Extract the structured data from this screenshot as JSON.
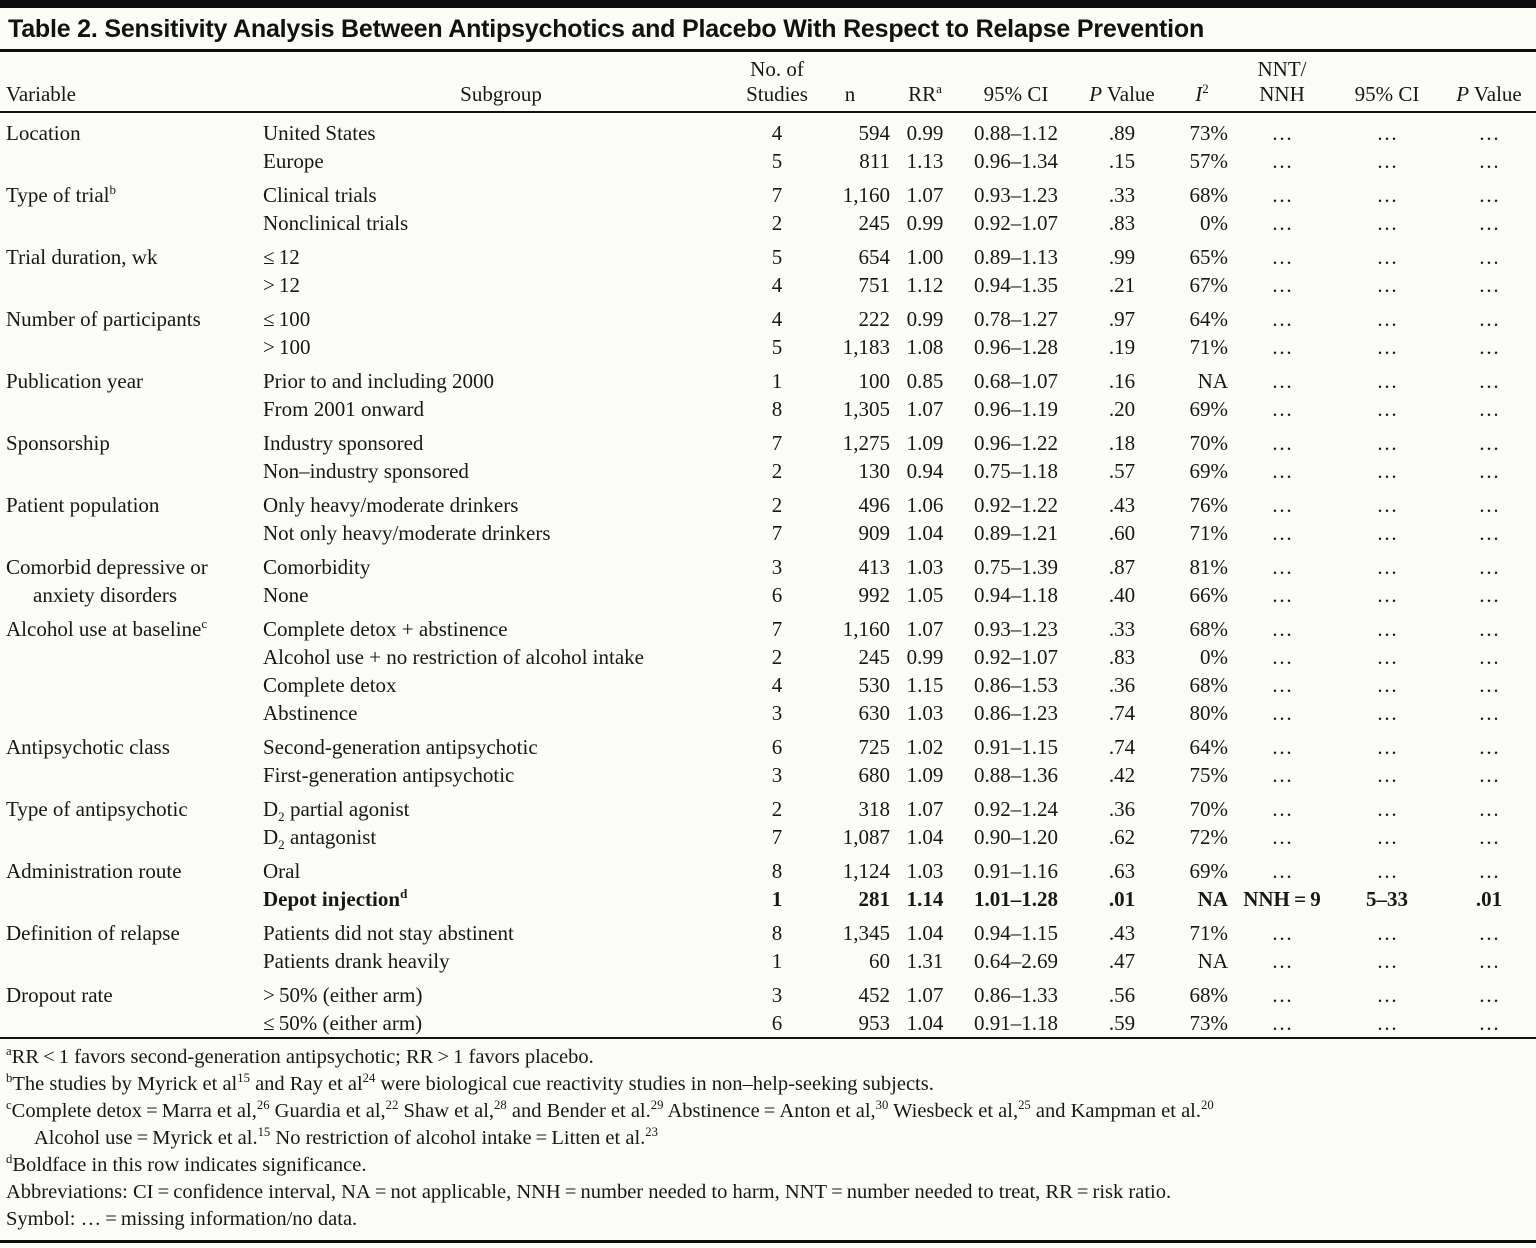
{
  "title": "Table 2. Sensitivity Analysis Between Antipsychotics and Placebo With Respect to Relapse Prevention",
  "header": {
    "variable": "Variable",
    "subgroup": "Subgroup",
    "studies_line1": "No. of",
    "studies_line2": "Studies",
    "n": "n",
    "rr": "RR",
    "rr_sup": "a",
    "ci": "95% CI",
    "p_italic": "P",
    "p_rest": " Value",
    "i2_base": "I",
    "i2_sup": "2",
    "nnt_line1": "NNT/",
    "nnt_line2": "NNH",
    "ci2": "95% CI",
    "p2_italic": "P",
    "p2_rest": " Value"
  },
  "groups": [
    {
      "variable": {
        "lines": [
          "Location"
        ]
      },
      "rows": [
        {
          "subgroup": "United States",
          "cells": [
            "4",
            "594",
            "0.99",
            "0.88–1.12",
            ".89",
            "73%",
            "…",
            "…",
            "…"
          ]
        },
        {
          "subgroup": "Europe",
          "cells": [
            "5",
            "811",
            "1.13",
            "0.96–1.34",
            ".15",
            "57%",
            "…",
            "…",
            "…"
          ]
        }
      ]
    },
    {
      "variable": {
        "lines": [
          [
            {
              "t": "Type of trial"
            },
            {
              "t": "b",
              "sup": true
            }
          ]
        ]
      },
      "rows": [
        {
          "subgroup": "Clinical trials",
          "cells": [
            "7",
            "1,160",
            "1.07",
            "0.93–1.23",
            ".33",
            "68%",
            "…",
            "…",
            "…"
          ]
        },
        {
          "subgroup": "Nonclinical trials",
          "cells": [
            "2",
            "245",
            "0.99",
            "0.92–1.07",
            ".83",
            "0%",
            "…",
            "…",
            "…"
          ]
        }
      ]
    },
    {
      "variable": {
        "lines": [
          "Trial duration, wk"
        ]
      },
      "rows": [
        {
          "subgroup": "≤ 12",
          "cells": [
            "5",
            "654",
            "1.00",
            "0.89–1.13",
            ".99",
            "65%",
            "…",
            "…",
            "…"
          ]
        },
        {
          "subgroup": "> 12",
          "cells": [
            "4",
            "751",
            "1.12",
            "0.94–1.35",
            ".21",
            "67%",
            "…",
            "…",
            "…"
          ]
        }
      ]
    },
    {
      "variable": {
        "lines": [
          "Number of participants"
        ]
      },
      "rows": [
        {
          "subgroup": "≤ 100",
          "cells": [
            "4",
            "222",
            "0.99",
            "0.78–1.27",
            ".97",
            "64%",
            "…",
            "…",
            "…"
          ]
        },
        {
          "subgroup": "> 100",
          "cells": [
            "5",
            "1,183",
            "1.08",
            "0.96–1.28",
            ".19",
            "71%",
            "…",
            "…",
            "…"
          ]
        }
      ]
    },
    {
      "variable": {
        "lines": [
          "Publication year"
        ]
      },
      "rows": [
        {
          "subgroup": "Prior to and including 2000",
          "cells": [
            "1",
            "100",
            "0.85",
            "0.68–1.07",
            ".16",
            "NA",
            "…",
            "…",
            "…"
          ]
        },
        {
          "subgroup": "From 2001 onward",
          "cells": [
            "8",
            "1,305",
            "1.07",
            "0.96–1.19",
            ".20",
            "69%",
            "…",
            "…",
            "…"
          ]
        }
      ]
    },
    {
      "variable": {
        "lines": [
          "Sponsorship"
        ]
      },
      "rows": [
        {
          "subgroup": "Industry sponsored",
          "cells": [
            "7",
            "1,275",
            "1.09",
            "0.96–1.22",
            ".18",
            "70%",
            "…",
            "…",
            "…"
          ]
        },
        {
          "subgroup": "Non–industry sponsored",
          "cells": [
            "2",
            "130",
            "0.94",
            "0.75–1.18",
            ".57",
            "69%",
            "…",
            "…",
            "…"
          ]
        }
      ]
    },
    {
      "variable": {
        "lines": [
          "Patient population"
        ]
      },
      "rows": [
        {
          "subgroup": "Only heavy/moderate drinkers",
          "cells": [
            "2",
            "496",
            "1.06",
            "0.92–1.22",
            ".43",
            "76%",
            "…",
            "…",
            "…"
          ]
        },
        {
          "subgroup": "Not only heavy/moderate drinkers",
          "cells": [
            "7",
            "909",
            "1.04",
            "0.89–1.21",
            ".60",
            "71%",
            "…",
            "…",
            "…"
          ]
        }
      ]
    },
    {
      "variable": {
        "lines": [
          "Comorbid depressive or",
          "anxiety disorders"
        ]
      },
      "rows": [
        {
          "subgroup": "Comorbidity",
          "cells": [
            "3",
            "413",
            "1.03",
            "0.75–1.39",
            ".87",
            "81%",
            "…",
            "…",
            "…"
          ]
        },
        {
          "subgroup": "None",
          "cells": [
            "6",
            "992",
            "1.05",
            "0.94–1.18",
            ".40",
            "66%",
            "…",
            "…",
            "…"
          ]
        }
      ]
    },
    {
      "variable": {
        "lines": [
          [
            {
              "t": "Alcohol use at baseline"
            },
            {
              "t": "c",
              "sup": true
            }
          ]
        ]
      },
      "rows": [
        {
          "subgroup": "Complete detox + abstinence",
          "cells": [
            "7",
            "1,160",
            "1.07",
            "0.93–1.23",
            ".33",
            "68%",
            "…",
            "…",
            "…"
          ]
        },
        {
          "subgroup": "Alcohol use + no restriction of alcohol intake",
          "cells": [
            "2",
            "245",
            "0.99",
            "0.92–1.07",
            ".83",
            "0%",
            "…",
            "…",
            "…"
          ]
        },
        {
          "subgroup": "Complete detox",
          "cells": [
            "4",
            "530",
            "1.15",
            "0.86–1.53",
            ".36",
            "68%",
            "…",
            "…",
            "…"
          ]
        },
        {
          "subgroup": "Abstinence",
          "cells": [
            "3",
            "630",
            "1.03",
            "0.86–1.23",
            ".74",
            "80%",
            "…",
            "…",
            "…"
          ]
        }
      ]
    },
    {
      "variable": {
        "lines": [
          "Antipsychotic class"
        ]
      },
      "rows": [
        {
          "subgroup": "Second-generation antipsychotic",
          "cells": [
            "6",
            "725",
            "1.02",
            "0.91–1.15",
            ".74",
            "64%",
            "…",
            "…",
            "…"
          ]
        },
        {
          "subgroup": "First-generation antipsychotic",
          "cells": [
            "3",
            "680",
            "1.09",
            "0.88–1.36",
            ".42",
            "75%",
            "…",
            "…",
            "…"
          ]
        }
      ]
    },
    {
      "variable": {
        "lines": [
          "Type of antipsychotic"
        ]
      },
      "rows": [
        {
          "subgroup": [
            {
              "t": "D"
            },
            {
              "t": "2",
              "sub": true
            },
            {
              "t": " partial agonist"
            }
          ],
          "cells": [
            "2",
            "318",
            "1.07",
            "0.92–1.24",
            ".36",
            "70%",
            "…",
            "…",
            "…"
          ]
        },
        {
          "subgroup": [
            {
              "t": "D"
            },
            {
              "t": "2",
              "sub": true
            },
            {
              "t": " antagonist"
            }
          ],
          "cells": [
            "7",
            "1,087",
            "1.04",
            "0.90–1.20",
            ".62",
            "72%",
            "…",
            "…",
            "…"
          ]
        }
      ]
    },
    {
      "variable": {
        "lines": [
          "Administration route"
        ]
      },
      "rows": [
        {
          "subgroup": "Oral",
          "cells": [
            "8",
            "1,124",
            "1.03",
            "0.91–1.16",
            ".63",
            "69%",
            "…",
            "…",
            "…"
          ]
        },
        {
          "subgroup": [
            {
              "t": "Depot injection"
            },
            {
              "t": "d",
              "sup": true
            }
          ],
          "bold": true,
          "cells": [
            "1",
            "281",
            "1.14",
            "1.01–1.28",
            ".01",
            "NA",
            "NNH = 9",
            "5–33",
            ".01"
          ]
        }
      ]
    },
    {
      "variable": {
        "lines": [
          "Definition of relapse"
        ]
      },
      "rows": [
        {
          "subgroup": "Patients did not stay abstinent",
          "cells": [
            "8",
            "1,345",
            "1.04",
            "0.94–1.15",
            ".43",
            "71%",
            "…",
            "…",
            "…"
          ]
        },
        {
          "subgroup": "Patients drank heavily",
          "cells": [
            "1",
            "60",
            "1.31",
            "0.64–2.69",
            ".47",
            "NA",
            "…",
            "…",
            "…"
          ]
        }
      ]
    },
    {
      "variable": {
        "lines": [
          "Dropout rate"
        ]
      },
      "rows": [
        {
          "subgroup": "> 50% (either arm)",
          "cells": [
            "3",
            "452",
            "1.07",
            "0.86–1.33",
            ".56",
            "68%",
            "…",
            "…",
            "…"
          ]
        },
        {
          "subgroup": "≤ 50% (either arm)",
          "cells": [
            "6",
            "953",
            "1.04",
            "0.91–1.18",
            ".59",
            "73%",
            "…",
            "…",
            "…"
          ]
        }
      ]
    }
  ],
  "footnotes": [
    {
      "indent": false,
      "tokens": [
        {
          "t": "a",
          "sup": true
        },
        {
          "t": "RR < 1 favors second-generation antipsychotic; RR > 1 favors placebo."
        }
      ]
    },
    {
      "indent": false,
      "tokens": [
        {
          "t": "b",
          "sup": true
        },
        {
          "t": "The studies by Myrick et al"
        },
        {
          "t": "15",
          "sup": true
        },
        {
          "t": " and Ray et al"
        },
        {
          "t": "24",
          "sup": true
        },
        {
          "t": " were biological cue reactivity studies in non–help-seeking subjects."
        }
      ]
    },
    {
      "indent": false,
      "tokens": [
        {
          "t": "c",
          "sup": true
        },
        {
          "t": "Complete detox = Marra et al,"
        },
        {
          "t": "26",
          "sup": true
        },
        {
          "t": " Guardia et al,"
        },
        {
          "t": "22",
          "sup": true
        },
        {
          "t": " Shaw et al,"
        },
        {
          "t": "28",
          "sup": true
        },
        {
          "t": " and Bender et al."
        },
        {
          "t": "29",
          "sup": true
        },
        {
          "t": " Abstinence = Anton et al,"
        },
        {
          "t": "30",
          "sup": true
        },
        {
          "t": " Wiesbeck et al,"
        },
        {
          "t": "25",
          "sup": true
        },
        {
          "t": " and Kampman et al."
        },
        {
          "t": "20",
          "sup": true
        }
      ]
    },
    {
      "indent": true,
      "tokens": [
        {
          "t": "Alcohol use = Myrick et al."
        },
        {
          "t": "15",
          "sup": true
        },
        {
          "t": " No restriction of alcohol intake = Litten et al."
        },
        {
          "t": "23",
          "sup": true
        }
      ]
    },
    {
      "indent": false,
      "tokens": [
        {
          "t": "d",
          "sup": true
        },
        {
          "t": "Boldface in this row indicates significance."
        }
      ]
    },
    {
      "indent": false,
      "tokens": [
        {
          "t": "Abbreviations: CI = confidence interval, NA = not applicable, NNH = number needed to harm, NNT = number needed to treat, RR = risk ratio."
        }
      ]
    },
    {
      "indent": false,
      "tokens": [
        {
          "t": "Symbol: … = missing information/no data."
        }
      ]
    }
  ]
}
